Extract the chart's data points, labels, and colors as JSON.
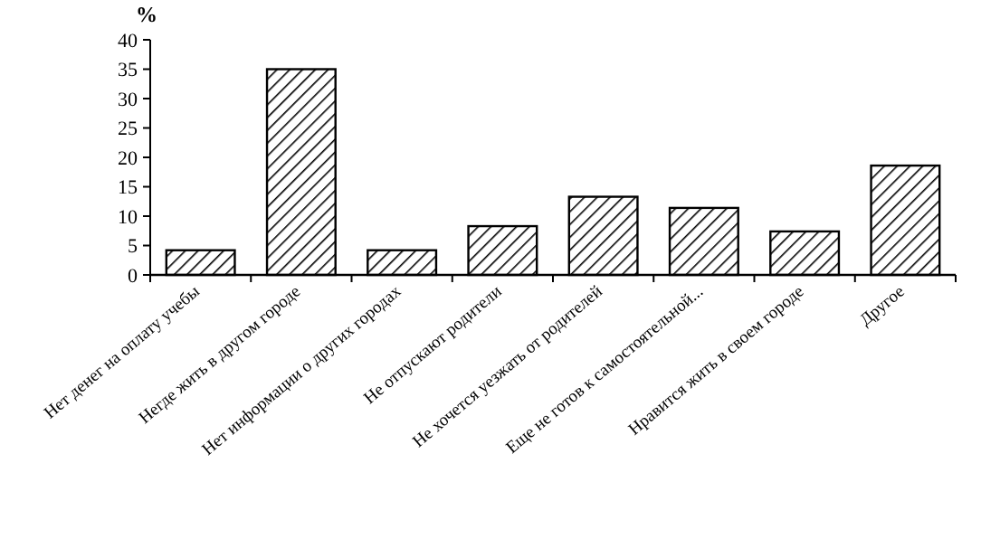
{
  "chart_data": {
    "type": "bar",
    "ylabel": "%",
    "categories": [
      "Нет денег на оплату учебы",
      "Негде жить в другом городе",
      "Нет информации о других городах",
      "Не отпускают родители",
      "Не хочется уезжать от родителей",
      "Еще не готов к самостоятельной...",
      "Нравится жить в своем городе",
      "Другое"
    ],
    "values": [
      4.2,
      35,
      4.2,
      8.3,
      13.3,
      11.4,
      7.4,
      18.6
    ],
    "color": "#000000",
    "ylim": [
      0,
      40
    ],
    "yticks": [
      0,
      5,
      10,
      15,
      20,
      25,
      30,
      35,
      40
    ],
    "grid": false
  }
}
